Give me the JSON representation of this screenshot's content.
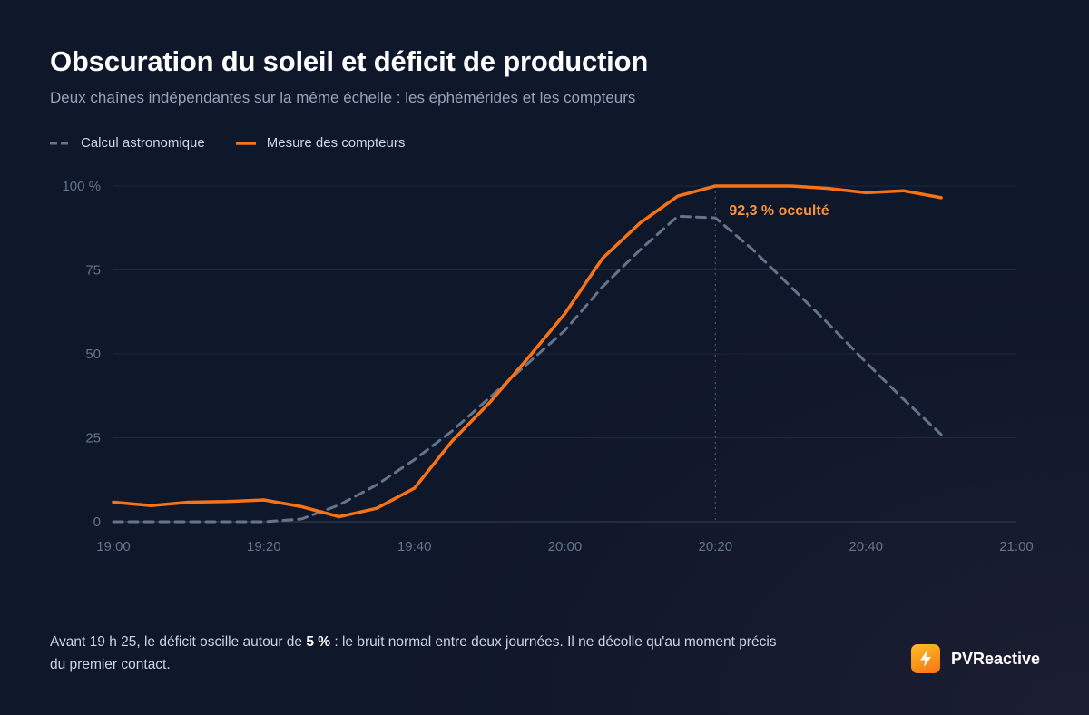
{
  "header": {
    "title": "Obscuration du soleil et déficit de production",
    "subtitle": "Deux chaînes indépendantes sur la même échelle : les éphémérides et les compteurs"
  },
  "legend": {
    "astro_label": "Calcul astronomique",
    "meter_label": "Mesure des compteurs"
  },
  "footnote": {
    "part1": "Avant 19 h 25, le déficit oscille autour de ",
    "bold": "5 %",
    "part2": " : le bruit normal entre deux journées. Il ne décolle qu'au moment précis du premier contact."
  },
  "brand": {
    "name": "PVReactive",
    "icon": "bolt-icon"
  },
  "colors": {
    "background": "#0f172a",
    "astro": "#64748b",
    "meter": "#f97316",
    "annotation": "#fb923c",
    "grid": "#1e293b",
    "axis_text": "#64748b"
  },
  "chart_data": {
    "type": "line",
    "title": "Obscuration du soleil et déficit de production",
    "subtitle": "Deux chaînes indépendantes sur la même échelle : les éphémérides et les compteurs",
    "x_ticks": [
      "19:00",
      "19:20",
      "19:40",
      "20:00",
      "20:20",
      "20:40",
      "21:00"
    ],
    "x_range_minutes": [
      0,
      120
    ],
    "y_ticks": [
      "0",
      "25",
      "50",
      "75",
      "100 %"
    ],
    "ylim": [
      0,
      100
    ],
    "grid": "horizontal",
    "legend_position": "top-left",
    "series": [
      {
        "name": "Calcul astronomique",
        "style": "dashed",
        "color": "#64748b",
        "x_minutes": [
          0,
          5,
          10,
          15,
          20,
          25,
          30,
          35,
          40,
          45,
          50,
          55,
          60,
          65,
          70,
          75,
          80,
          85,
          90,
          95,
          100,
          105,
          110
        ],
        "values": [
          0,
          0,
          0,
          0,
          0,
          0.8,
          5,
          11,
          18.5,
          27,
          37,
          47,
          57,
          70,
          81,
          91,
          90.5,
          81,
          70,
          59,
          47.5,
          36.5,
          26
        ]
      },
      {
        "name": "Mesure des compteurs",
        "style": "solid",
        "color": "#f97316",
        "x_minutes": [
          0,
          5,
          10,
          15,
          20,
          25,
          30,
          35,
          40,
          45,
          50,
          55,
          60,
          65,
          70,
          75,
          80,
          85,
          90,
          95,
          100,
          105,
          110
        ],
        "values": [
          5.8,
          4.8,
          5.8,
          6,
          6.5,
          4.5,
          1.5,
          4,
          10,
          24,
          35.5,
          48.5,
          62,
          78.5,
          89,
          97,
          100,
          100,
          100,
          99.3,
          98,
          98.6,
          96.5
        ]
      }
    ],
    "annotation": {
      "text": "92,3 % occulté",
      "x_minutes": 80,
      "color": "#fb923c"
    }
  }
}
